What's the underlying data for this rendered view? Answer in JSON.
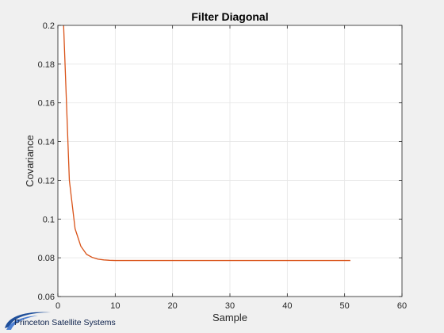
{
  "logo": {
    "text": "Princeton Satellite Systems"
  },
  "chart_data": {
    "type": "line",
    "title": "Filter Diagonal",
    "xlabel": "Sample",
    "ylabel": "Covariance",
    "xlim": [
      0,
      60
    ],
    "ylim": [
      0.06,
      0.2
    ],
    "xticks": [
      0,
      10,
      20,
      30,
      40,
      50,
      60
    ],
    "yticks": [
      0.06,
      0.08,
      0.1,
      0.12,
      0.14,
      0.16,
      0.18,
      0.2
    ],
    "xtick_labels": [
      "0",
      "10",
      "20",
      "30",
      "40",
      "50",
      "60"
    ],
    "ytick_labels": [
      "0.06",
      "0.08",
      "0.1",
      "0.12",
      "0.14",
      "0.16",
      "0.18",
      "0.2"
    ],
    "grid": true,
    "series": [
      {
        "color": "#d95319",
        "x": [
          1,
          2,
          3,
          4,
          5,
          6,
          7,
          8,
          9,
          10,
          11,
          12,
          13,
          14,
          15,
          20,
          25,
          30,
          35,
          40,
          45,
          51
        ],
        "y": [
          0.2,
          0.12,
          0.095,
          0.086,
          0.0818,
          0.0802,
          0.0793,
          0.0789,
          0.0787,
          0.0786,
          0.0786,
          0.0786,
          0.0786,
          0.0786,
          0.0786,
          0.0786,
          0.0786,
          0.0786,
          0.0786,
          0.0786,
          0.0786,
          0.0786
        ]
      }
    ]
  }
}
